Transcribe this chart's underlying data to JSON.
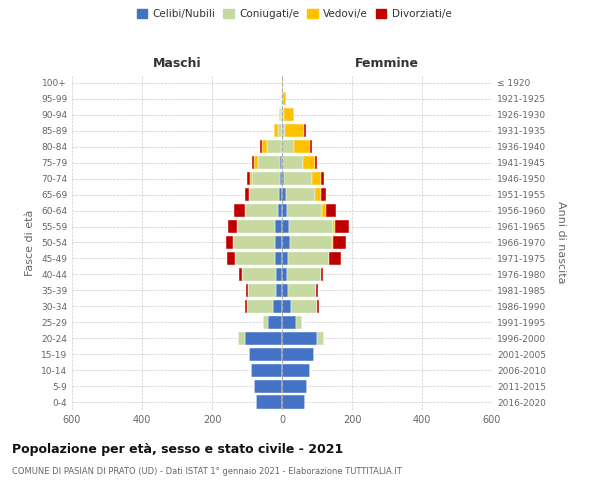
{
  "age_groups": [
    "0-4",
    "5-9",
    "10-14",
    "15-19",
    "20-24",
    "25-29",
    "30-34",
    "35-39",
    "40-44",
    "45-49",
    "50-54",
    "55-59",
    "60-64",
    "65-69",
    "70-74",
    "75-79",
    "80-84",
    "85-89",
    "90-94",
    "95-99",
    "100+"
  ],
  "birth_years": [
    "2016-2020",
    "2011-2015",
    "2006-2010",
    "2001-2005",
    "1996-2000",
    "1991-1995",
    "1986-1990",
    "1981-1985",
    "1976-1980",
    "1971-1975",
    "1966-1970",
    "1961-1965",
    "1956-1960",
    "1951-1955",
    "1946-1950",
    "1941-1945",
    "1936-1940",
    "1931-1935",
    "1926-1930",
    "1921-1925",
    "≤ 1920"
  ],
  "male": {
    "celibi": [
      75,
      80,
      90,
      95,
      105,
      40,
      25,
      18,
      18,
      20,
      20,
      20,
      12,
      8,
      6,
      5,
      3,
      0,
      0,
      0,
      0
    ],
    "coniugati": [
      0,
      0,
      0,
      0,
      20,
      15,
      75,
      80,
      95,
      115,
      120,
      110,
      95,
      85,
      80,
      65,
      40,
      12,
      5,
      2,
      0
    ],
    "vedovi": [
      0,
      0,
      0,
      0,
      0,
      0,
      0,
      0,
      0,
      0,
      0,
      0,
      0,
      0,
      5,
      10,
      15,
      10,
      5,
      0,
      0
    ],
    "divorziati": [
      0,
      0,
      0,
      0,
      0,
      0,
      5,
      5,
      10,
      22,
      20,
      25,
      30,
      12,
      10,
      5,
      5,
      0,
      0,
      0,
      0
    ]
  },
  "female": {
    "nubili": [
      65,
      70,
      80,
      90,
      100,
      40,
      25,
      18,
      15,
      18,
      22,
      20,
      15,
      10,
      5,
      0,
      0,
      0,
      0,
      0,
      0
    ],
    "coniugate": [
      0,
      0,
      0,
      0,
      20,
      18,
      75,
      80,
      95,
      115,
      120,
      125,
      100,
      85,
      80,
      60,
      35,
      8,
      5,
      2,
      0
    ],
    "vedove": [
      0,
      0,
      0,
      0,
      0,
      0,
      0,
      0,
      0,
      0,
      5,
      5,
      10,
      15,
      25,
      35,
      45,
      55,
      30,
      8,
      2
    ],
    "divorziate": [
      0,
      0,
      0,
      0,
      0,
      0,
      5,
      5,
      8,
      35,
      35,
      40,
      30,
      15,
      10,
      5,
      5,
      5,
      0,
      0,
      0
    ]
  },
  "colors": {
    "celibi": "#4472c4",
    "coniugati": "#c5d9a0",
    "vedovi": "#ffc000",
    "divorziati": "#c00000"
  },
  "xlim": 600,
  "title": "Popolazione per età, sesso e stato civile - 2021",
  "subtitle": "COMUNE DI PASIAN DI PRATO (UD) - Dati ISTAT 1° gennaio 2021 - Elaborazione TUTTITALIA.IT",
  "ylabel_left": "Fasce di età",
  "ylabel_right": "Anni di nascita",
  "legend_labels": [
    "Celibi/Nubili",
    "Coniugati/e",
    "Vedovi/e",
    "Divorziati/e"
  ],
  "background_color": "#ffffff",
  "grid_color": "#cccccc"
}
